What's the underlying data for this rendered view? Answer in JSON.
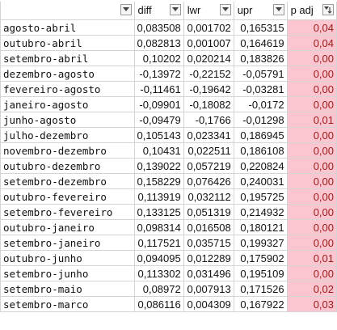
{
  "header": {
    "col_a": "",
    "diff": "diff",
    "lwr": "lwr",
    "upr": "upr",
    "p_adj": "p adj"
  },
  "icons": {
    "filter": "filter-dropdown-icon",
    "filter_active": "filter-active-icon"
  },
  "colors": {
    "p_adj_fill": "#fbc6cf",
    "p_adj_text": "#9c1a1a"
  },
  "rows": [
    {
      "name": "agosto-abril",
      "diff": "0,083508",
      "lwr": "0,001702",
      "upr": "0,165315",
      "padj": "0,04"
    },
    {
      "name": "outubro-abril",
      "diff": "0,082813",
      "lwr": "0,001007",
      "upr": "0,164619",
      "padj": "0,04"
    },
    {
      "name": "setembro-abril",
      "diff": "0,10202",
      "lwr": "0,020214",
      "upr": "0,183826",
      "padj": "0,00"
    },
    {
      "name": "dezembro-agosto",
      "diff": "-0,13972",
      "lwr": "-0,22152",
      "upr": "-0,05791",
      "padj": "0,00"
    },
    {
      "name": "fevereiro-agosto",
      "diff": "-0,11461",
      "lwr": "-0,19642",
      "upr": "-0,03281",
      "padj": "0,00"
    },
    {
      "name": "janeiro-agosto",
      "diff": "-0,09901",
      "lwr": "-0,18082",
      "upr": "-0,0172",
      "padj": "0,00"
    },
    {
      "name": "junho-agosto",
      "diff": "-0,09479",
      "lwr": "-0,1766",
      "upr": "-0,01298",
      "padj": "0,01"
    },
    {
      "name": "julho-dezembro",
      "diff": "0,105143",
      "lwr": "0,023341",
      "upr": "0,186945",
      "padj": "0,00"
    },
    {
      "name": "novembro-dezembro",
      "diff": "0,10431",
      "lwr": "0,022511",
      "upr": "0,186108",
      "padj": "0,00"
    },
    {
      "name": "outubro-dezembro",
      "diff": "0,139022",
      "lwr": "0,057219",
      "upr": "0,220824",
      "padj": "0,00"
    },
    {
      "name": "setembro-dezembro",
      "diff": "0,158229",
      "lwr": "0,076426",
      "upr": "0,240031",
      "padj": "0,00"
    },
    {
      "name": "outubro-fevereiro",
      "diff": "0,113919",
      "lwr": "0,032112",
      "upr": "0,195725",
      "padj": "0,00"
    },
    {
      "name": "setembro-fevereiro",
      "diff": "0,133125",
      "lwr": "0,051319",
      "upr": "0,214932",
      "padj": "0,00"
    },
    {
      "name": "outubro-janeiro",
      "diff": "0,098314",
      "lwr": "0,016508",
      "upr": "0,180121",
      "padj": "0,00"
    },
    {
      "name": "setembro-janeiro",
      "diff": "0,117521",
      "lwr": "0,035715",
      "upr": "0,199327",
      "padj": "0,00"
    },
    {
      "name": "outubro-junho",
      "diff": "0,094095",
      "lwr": "0,012289",
      "upr": "0,175902",
      "padj": "0,01"
    },
    {
      "name": "setembro-junho",
      "diff": "0,113302",
      "lwr": "0,031496",
      "upr": "0,195109",
      "padj": "0,00"
    },
    {
      "name": "setembro-maio",
      "diff": "0,08972",
      "lwr": "0,007913",
      "upr": "0,171526",
      "padj": "0,02"
    },
    {
      "name": "setembro-marco",
      "diff": "0,086116",
      "lwr": "0,004309",
      "upr": "0,167922",
      "padj": "0,03"
    }
  ]
}
